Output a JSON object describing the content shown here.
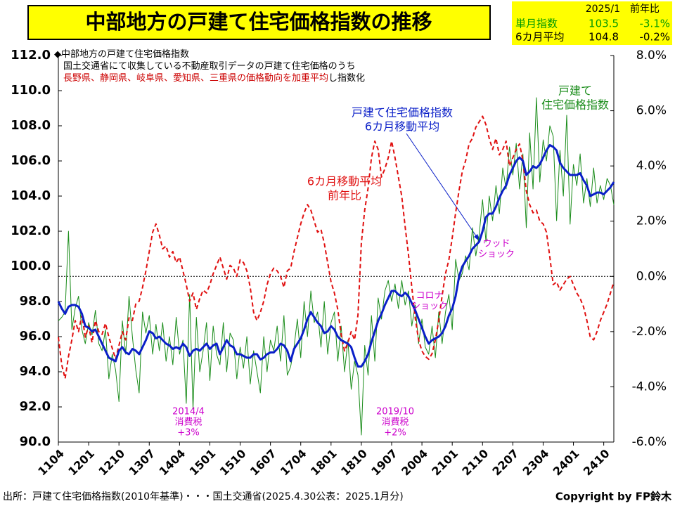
{
  "header": {
    "title": "中部地方の戸建て住宅価格指数の推移"
  },
  "summary": {
    "header": "2025/1　前年比",
    "rows": [
      {
        "label": "単月指数",
        "value": "103.5",
        "change": "-3.1%",
        "color": "#009900"
      },
      {
        "label": "6カ月平均",
        "value": "104.8",
        "change": "-0.2%",
        "color": "#000000"
      }
    ]
  },
  "notes": [
    [
      {
        "text": "◆中部地方の戸建て住宅価格指数",
        "color": "#000000"
      }
    ],
    [
      {
        "text": "　国土交通省にて収集している不動産取引データの戸建て住宅価格のうち",
        "color": "#000000"
      }
    ],
    [
      {
        "text": "　長野県、静岡県、岐阜県、愛知県、三重県の価格動向を加重平均",
        "color": "#cc0000"
      },
      {
        "text": "し指数化",
        "color": "#000000"
      }
    ]
  ],
  "footer": {
    "source": "出所：戸建て住宅価格指数(2010年基準)・・・国土交通省(2025.4.30公表：2025.1月分)",
    "copyright": "Copyright by FP鈴木"
  },
  "chart_data": {
    "type": "line",
    "categories": [
      "1104",
      null,
      null,
      null,
      null,
      null,
      null,
      null,
      null,
      "1201",
      null,
      null,
      null,
      null,
      null,
      null,
      null,
      null,
      "1210",
      null,
      null,
      null,
      null,
      null,
      null,
      null,
      null,
      "1307",
      null,
      null,
      null,
      null,
      null,
      null,
      null,
      null,
      "1404",
      null,
      null,
      null,
      null,
      null,
      null,
      null,
      null,
      "1501",
      null,
      null,
      null,
      null,
      null,
      null,
      null,
      null,
      "1510",
      null,
      null,
      null,
      null,
      null,
      null,
      null,
      null,
      "1607",
      null,
      null,
      null,
      null,
      null,
      null,
      null,
      null,
      "1704",
      null,
      null,
      null,
      null,
      null,
      null,
      null,
      null,
      "1801",
      null,
      null,
      null,
      null,
      null,
      null,
      null,
      null,
      "1810",
      null,
      null,
      null,
      null,
      null,
      null,
      null,
      null,
      "1907",
      null,
      null,
      null,
      null,
      null,
      null,
      null,
      null,
      "2004",
      null,
      null,
      null,
      null,
      null,
      null,
      null,
      null,
      "2101",
      null,
      null,
      null,
      null,
      null,
      null,
      null,
      null,
      "2110",
      null,
      null,
      null,
      null,
      null,
      null,
      null,
      null,
      "2207",
      null,
      null,
      null,
      null,
      null,
      null,
      null,
      null,
      "2304",
      null,
      null,
      null,
      null,
      null,
      null,
      null,
      null,
      "2401",
      null,
      null,
      null,
      null,
      null,
      null,
      null,
      null,
      "2410",
      null,
      null,
      null
    ],
    "ylim": [
      90,
      112
    ],
    "yticks": [
      {
        "value": 90,
        "label": "90.0"
      },
      {
        "value": 92,
        "label": "92.0"
      },
      {
        "value": 94,
        "label": "94.0"
      },
      {
        "value": 96,
        "label": "96.0"
      },
      {
        "value": 98,
        "label": "98.0"
      },
      {
        "value": 100,
        "label": "100.0"
      },
      {
        "value": 102,
        "label": "102.0"
      },
      {
        "value": 104,
        "label": "104.0"
      },
      {
        "value": 106,
        "label": "106.0"
      },
      {
        "value": 108,
        "label": "108.0"
      },
      {
        "value": 110,
        "label": "110.0"
      },
      {
        "value": 112,
        "label": "112.0"
      }
    ],
    "y2lim": [
      -6,
      8
    ],
    "y2ticks": [
      {
        "value": -6,
        "label": "-6.0%"
      },
      {
        "value": -4,
        "label": "-4.0%"
      },
      {
        "value": -2,
        "label": "-2.0%"
      },
      {
        "value": 0,
        "label": "0.0%"
      },
      {
        "value": 2,
        "label": "2.0%"
      },
      {
        "value": 4,
        "label": "4.0%"
      },
      {
        "value": 6,
        "label": "6.0%"
      },
      {
        "value": 8,
        "label": "8.0%"
      }
    ],
    "reference_line": {
      "axis": "y2",
      "value": 0
    },
    "series": [
      {
        "label_lines": [
          "戸建て",
          "住宅価格指数"
        ],
        "color": "#1a8c1a",
        "width": 1,
        "values": [
          96.9,
          97.1,
          97.4,
          102.0,
          96.4,
          97.6,
          98.3,
          96.4,
          95.6,
          96.8,
          96.1,
          97.5,
          95.6,
          95.2,
          96.4,
          93.6,
          95.0,
          94.1,
          92.3,
          96.9,
          95.0,
          98.3,
          96.0,
          94.1,
          92.8,
          97.4,
          96.2,
          97.2,
          95.0,
          96.7,
          95.2,
          96.8,
          94.6,
          96.0,
          94.4,
          97.1,
          95.0,
          95.8,
          92.2,
          98.4,
          91.9,
          97.1,
          94.0,
          95.2,
          96.8,
          93.5,
          96.6,
          95.0,
          94.4,
          96.8,
          94.0,
          96.2,
          95.8,
          93.6,
          95.4,
          94.2,
          96.0,
          93.3,
          95.2,
          94.0,
          92.8,
          96.0,
          94.0,
          95.8,
          95.2,
          96.6,
          94.6,
          97.2,
          93.8,
          94.3,
          95.4,
          97.0,
          94.8,
          98.0,
          96.0,
          98.6,
          96.8,
          97.4,
          95.4,
          98.0,
          95.0,
          96.8,
          97.4,
          94.6,
          96.6,
          94.0,
          95.8,
          93.0,
          94.6,
          93.8,
          90.4,
          95.5,
          93.8,
          97.2,
          94.6,
          98.2,
          97.0,
          98.6,
          99.2,
          98.0,
          99.0,
          97.6,
          99.2,
          97.8,
          98.6,
          96.6,
          97.8,
          95.6,
          97.0,
          95.4,
          95.0,
          96.6,
          94.8,
          97.4,
          95.6,
          97.4,
          98.4,
          96.4,
          100.4,
          99.2,
          99.6,
          100.6,
          99.8,
          102.2,
          100.6,
          101.8,
          103.8,
          101.4,
          104.0,
          102.6,
          104.6,
          103.0,
          105.6,
          104.4,
          106.8,
          105.2,
          107.0,
          104.4,
          106.4,
          102.2,
          107.6,
          104.4,
          109.6,
          104.8,
          107.2,
          106.0,
          108.0,
          107.4,
          102.6,
          106.6,
          104.0,
          108.6,
          102.4,
          105.8,
          104.6,
          106.4,
          103.6,
          105.0,
          103.4,
          105.6,
          103.6,
          104.6,
          103.8,
          105.0,
          104.6,
          103.5
        ]
      },
      {
        "label_lines": [
          "戸建て住宅価格指数",
          "6カ月移動平均"
        ],
        "color": "#0a1fc8",
        "width": 3,
        "values": [
          98.0,
          97.6,
          97.3,
          97.7,
          97.8,
          97.8,
          97.7,
          97.3,
          96.6,
          96.5,
          96.3,
          96.4,
          96.0,
          95.6,
          95.2,
          94.8,
          94.7,
          94.6,
          95.2,
          95.4,
          95.1,
          95.0,
          95.3,
          95.2,
          95.0,
          95.4,
          95.8,
          96.3,
          96.2,
          95.9,
          96.0,
          95.8,
          95.6,
          95.5,
          95.3,
          95.4,
          95.3,
          95.6,
          95.4,
          94.9,
          95.2,
          95.3,
          95.2,
          95.4,
          95.6,
          95.3,
          95.5,
          95.6,
          95.0,
          95.4,
          95.8,
          95.5,
          95.4,
          95.0,
          95.0,
          94.9,
          94.8,
          94.8,
          95.0,
          95.0,
          94.7,
          94.8,
          95.0,
          95.1,
          95.1,
          95.3,
          95.6,
          95.5,
          95.2,
          94.6,
          95.3,
          95.6,
          95.9,
          96.4,
          97.0,
          97.4,
          97.1,
          96.8,
          96.6,
          96.2,
          96.3,
          96.6,
          96.4,
          96.0,
          95.8,
          95.7,
          95.6,
          95.4,
          94.8,
          94.3,
          94.3,
          94.6,
          95.0,
          95.7,
          96.3,
          96.9,
          97.3,
          97.8,
          98.2,
          98.6,
          98.6,
          98.4,
          98.3,
          98.5,
          98.3,
          97.9,
          97.5,
          97.0,
          96.5,
          96.0,
          95.6,
          95.8,
          95.9,
          96.0,
          96.2,
          96.6,
          97.2,
          97.6,
          98.3,
          99.4,
          100.0,
          100.3,
          100.6,
          101.0,
          101.2,
          101.4,
          102.0,
          102.8,
          103.0,
          103.0,
          103.4,
          103.9,
          104.3,
          104.6,
          105.2,
          105.6,
          106.0,
          106.2,
          106.0,
          105.2,
          105.4,
          105.7,
          105.6,
          105.8,
          106.2,
          106.6,
          106.9,
          106.8,
          106.6,
          105.9,
          105.6,
          105.4,
          105.2,
          105.2,
          105.2,
          105.3,
          104.9,
          104.6,
          104.0,
          104.1,
          104.2,
          104.2,
          104.1,
          104.3,
          104.5,
          104.8
        ]
      },
      {
        "label_lines": [
          "6カ月移動平均",
          "前年比"
        ],
        "color": "#e01010",
        "width": 2,
        "dashed": true,
        "axis": "y2",
        "values": [
          -2.2,
          -3.2,
          -3.7,
          -2.9,
          -2.3,
          -1.6,
          -2.0,
          -1.4,
          -2.2,
          -1.8,
          -2.4,
          -1.6,
          -2.0,
          -2.1,
          -1.7,
          -2.2,
          -2.6,
          -3.0,
          -2.5,
          -2.0,
          -2.3,
          -1.5,
          -1.6,
          -1.0,
          -0.9,
          -0.4,
          0.2,
          0.9,
          1.6,
          1.9,
          1.5,
          1.0,
          1.1,
          0.7,
          0.9,
          0.5,
          0.7,
          0.2,
          -0.3,
          -0.9,
          -0.6,
          -1.2,
          -0.8,
          -0.5,
          -0.6,
          -0.3,
          0.1,
          0.4,
          0.7,
          0.3,
          -0.1,
          0.4,
          0.3,
          0.0,
          0.6,
          0.5,
          0.2,
          -0.4,
          -1.3,
          -1.6,
          -1.3,
          -0.9,
          -0.3,
          0.1,
          0.3,
          0.2,
          0.0,
          -0.4,
          0.2,
          0.3,
          0.9,
          1.4,
          1.9,
          2.3,
          2.6,
          2.4,
          2.0,
          1.6,
          1.7,
          1.2,
          0.5,
          -0.2,
          -0.6,
          -1.2,
          -2.1,
          -2.7,
          -2.4,
          -2.0,
          -2.3,
          -1.4,
          1.2,
          2.4,
          3.2,
          4.3,
          4.9,
          4.6,
          3.6,
          3.9,
          4.3,
          4.9,
          4.3,
          3.6,
          2.9,
          1.8,
          0.8,
          -0.4,
          -1.5,
          -2.3,
          -2.7,
          -2.9,
          -3.0,
          -2.8,
          -2.3,
          -1.6,
          -0.7,
          0.1,
          0.6,
          1.4,
          2.3,
          3.1,
          3.8,
          4.2,
          4.8,
          5.0,
          5.4,
          5.6,
          5.8,
          5.5,
          5.0,
          4.6,
          5.0,
          4.4,
          4.6,
          4.9,
          4.0,
          4.3,
          4.6,
          4.8,
          4.2,
          3.1,
          2.6,
          2.3,
          2.4,
          2.0,
          1.9,
          1.6,
          0.7,
          -0.3,
          -0.2,
          -0.5,
          -0.3,
          -0.1,
          0.0,
          -0.3,
          -0.6,
          -0.8,
          -1.1,
          -1.6,
          -2.2,
          -2.3,
          -2.0,
          -1.6,
          -1.3,
          -1.0,
          -0.6,
          -0.2
        ]
      }
    ],
    "annotations": [
      {
        "lines": [
          "ウッド",
          "ショック"
        ],
        "color": "#cc00cc"
      },
      {
        "lines": [
          "コロナ",
          "ショック"
        ],
        "color": "#cc00cc"
      },
      {
        "lines": [
          "2014/4",
          "消費税",
          "+3%"
        ],
        "color": "#cc00cc"
      },
      {
        "lines": [
          "2019/10",
          "消費税",
          "+2%"
        ],
        "color": "#cc00cc"
      }
    ]
  }
}
